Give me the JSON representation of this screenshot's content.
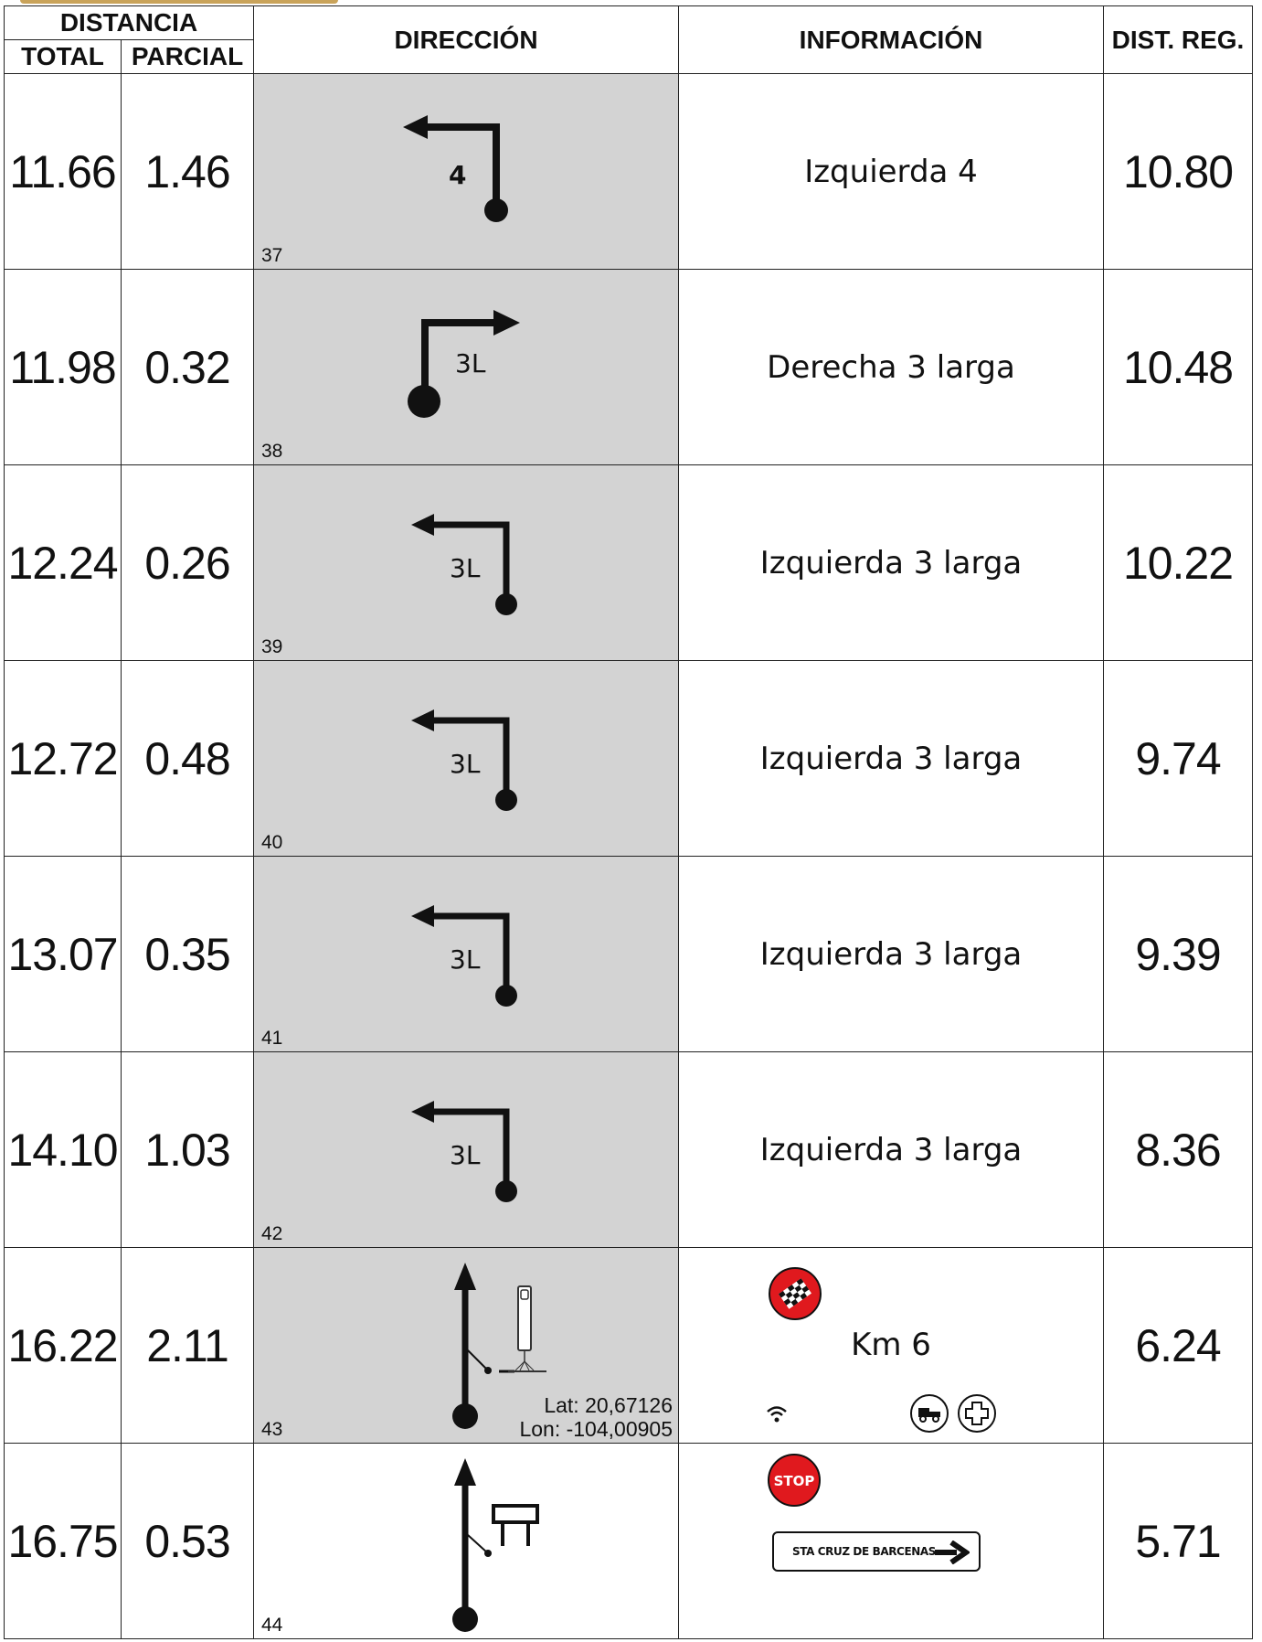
{
  "header": {
    "distancia": "DISTANCIA",
    "total": "TOTAL",
    "parcial": "PARCIAL",
    "direccion": "DIRECCIÓN",
    "informacion": "INFORMACIÓN",
    "dist_reg": "DIST. REG."
  },
  "rows": [
    {
      "total": "11.66",
      "parcial": "1.46",
      "box": "37",
      "tulip_label": "4",
      "tulip": "left-turn-arrow-icon",
      "info": "Izquierda 4",
      "dist_reg": "10.80"
    },
    {
      "total": "11.98",
      "parcial": "0.32",
      "box": "38",
      "tulip_label": "3L",
      "tulip": "right-turn-arrow-icon",
      "info": "Derecha 3 larga",
      "dist_reg": "10.48"
    },
    {
      "total": "12.24",
      "parcial": "0.26",
      "box": "39",
      "tulip_label": "3L",
      "tulip": "left-turn-arrow-icon",
      "info": "Izquierda 3 larga",
      "dist_reg": "10.22"
    },
    {
      "total": "12.72",
      "parcial": "0.48",
      "box": "40",
      "tulip_label": "3L",
      "tulip": "left-turn-arrow-icon",
      "info": "Izquierda 3 larga",
      "dist_reg": "9.74"
    },
    {
      "total": "13.07",
      "parcial": "0.35",
      "box": "41",
      "tulip_label": "3L",
      "tulip": "left-turn-arrow-icon",
      "info": "Izquierda 3 larga",
      "dist_reg": "9.39"
    },
    {
      "total": "14.10",
      "parcial": "1.03",
      "box": "42",
      "tulip_label": "3L",
      "tulip": "left-turn-arrow-icon",
      "info": "Izquierda 3 larga",
      "dist_reg": "8.36"
    },
    {
      "total": "16.22",
      "parcial": "2.11",
      "box": "43",
      "tulip": "straight-arrow-flying-finish-icon",
      "lat": "Lat: 20,67126",
      "lon": "Lon: -104,00905",
      "info": "Km 6",
      "info_icons": [
        "flying-finish-flag-icon",
        "wifi-icon",
        "tow-truck-icon",
        "medical-cross-icon"
      ],
      "dist_reg": "6.24"
    },
    {
      "total": "16.75",
      "parcial": "0.53",
      "box": "44",
      "tulip": "straight-arrow-stop-board-icon",
      "stop": "STOP",
      "sign": "STA CRUZ DE BARCENAS",
      "info_icons": [
        "stop-sign-icon",
        "direction-sign-icon",
        "right-arrow-icon"
      ],
      "dist_reg": "5.71"
    }
  ],
  "colors": {
    "tulip_bg": "#d3d3d3",
    "stop_red": "#e0191e"
  }
}
